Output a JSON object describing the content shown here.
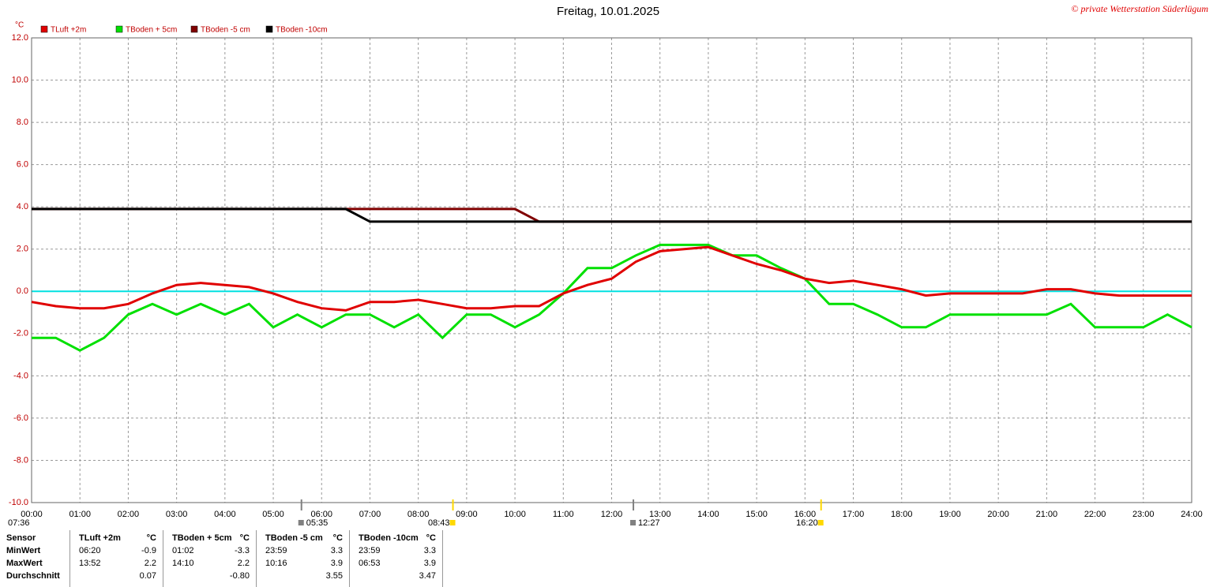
{
  "chart_data": {
    "type": "line",
    "title": "Freitag, 10.01.2025",
    "copyright": "© private Wetterstation Süderlügum",
    "y_unit": "°C",
    "x": [
      0,
      0.5,
      1,
      1.5,
      2,
      2.5,
      3,
      3.5,
      4,
      4.5,
      5,
      5.5,
      6,
      6.5,
      7,
      7.5,
      8,
      8.5,
      9,
      9.5,
      10,
      10.5,
      11,
      11.5,
      12,
      12.5,
      13,
      13.5,
      14,
      14.5,
      15,
      15.5,
      16,
      16.5,
      17,
      17.5,
      18,
      18.5,
      19,
      19.5,
      20,
      20.5,
      21,
      21.5,
      22,
      22.5,
      23,
      23.5,
      24
    ],
    "xlim": [
      0,
      24
    ],
    "xticks": [
      {
        "value": 0,
        "label": "00:00"
      },
      {
        "value": 1,
        "label": "01:00"
      },
      {
        "value": 2,
        "label": "02:00"
      },
      {
        "value": 3,
        "label": "03:00"
      },
      {
        "value": 4,
        "label": "04:00"
      },
      {
        "value": 5,
        "label": "05:00"
      },
      {
        "value": 6,
        "label": "06:00"
      },
      {
        "value": 7,
        "label": "07:00"
      },
      {
        "value": 8,
        "label": "08:00"
      },
      {
        "value": 9,
        "label": "09:00"
      },
      {
        "value": 10,
        "label": "10:00"
      },
      {
        "value": 11,
        "label": "11:00"
      },
      {
        "value": 12,
        "label": "12:00"
      },
      {
        "value": 13,
        "label": "13:00"
      },
      {
        "value": 14,
        "label": "14:00"
      },
      {
        "value": 15,
        "label": "15:00"
      },
      {
        "value": 16,
        "label": "16:00"
      },
      {
        "value": 17,
        "label": "17:00"
      },
      {
        "value": 18,
        "label": "18:00"
      },
      {
        "value": 19,
        "label": "19:00"
      },
      {
        "value": 20,
        "label": "20:00"
      },
      {
        "value": 21,
        "label": "21:00"
      },
      {
        "value": 22,
        "label": "22:00"
      },
      {
        "value": 23,
        "label": "23:00"
      },
      {
        "value": 24,
        "label": "24:00"
      }
    ],
    "ylim": [
      -10,
      12
    ],
    "yticks": [
      {
        "value": -10,
        "label": "-10.0"
      },
      {
        "value": -8,
        "label": "-8.0"
      },
      {
        "value": -6,
        "label": "-6.0"
      },
      {
        "value": -4,
        "label": "-4.0"
      },
      {
        "value": -2,
        "label": "-2.0"
      },
      {
        "value": 0,
        "label": "0.0"
      },
      {
        "value": 2,
        "label": "2.0"
      },
      {
        "value": 4,
        "label": "4.0"
      },
      {
        "value": 6,
        "label": "6.0"
      },
      {
        "value": 8,
        "label": "8.0"
      },
      {
        "value": 10,
        "label": "10.0"
      },
      {
        "value": 12,
        "label": "12.0"
      }
    ],
    "grid": true,
    "hline": 0,
    "hline_color": "#00e0e0",
    "series": [
      {
        "name": "TLuft +2m",
        "color": "#e00000",
        "values": [
          -0.5,
          -0.7,
          -0.8,
          -0.8,
          -0.6,
          -0.1,
          0.3,
          0.4,
          0.3,
          0.2,
          -0.1,
          -0.5,
          -0.8,
          -0.9,
          -0.5,
          -0.5,
          -0.4,
          -0.6,
          -0.8,
          -0.8,
          -0.7,
          -0.7,
          -0.1,
          0.3,
          0.6,
          1.4,
          1.9,
          2.0,
          2.1,
          1.7,
          1.3,
          1.0,
          0.6,
          0.4,
          0.5,
          0.3,
          0.1,
          -0.2,
          -0.1,
          -0.1,
          -0.1,
          -0.1,
          0.1,
          0.1,
          -0.1,
          -0.2,
          -0.2,
          -0.2,
          -0.2
        ]
      },
      {
        "name": "TBoden + 5cm",
        "color": "#00e000",
        "values": [
          -2.2,
          -2.2,
          -2.8,
          -2.2,
          -1.1,
          -0.6,
          -1.1,
          -0.6,
          -1.1,
          -0.6,
          -1.7,
          -1.1,
          -1.7,
          -1.1,
          -1.1,
          -1.7,
          -1.1,
          -2.2,
          -1.1,
          -1.1,
          -1.7,
          -1.1,
          -0.1,
          1.1,
          1.1,
          1.7,
          2.2,
          2.2,
          2.2,
          1.7,
          1.7,
          1.1,
          0.6,
          -0.6,
          -0.6,
          -1.1,
          -1.7,
          -1.7,
          -1.1,
          -1.1,
          -1.1,
          -1.1,
          -1.1,
          -0.6,
          -1.7,
          -1.7,
          -1.7,
          -1.1,
          -1.7
        ]
      },
      {
        "name": "TBoden -5 cm",
        "color": "#800000",
        "values": [
          3.9,
          3.9,
          3.9,
          3.9,
          3.9,
          3.9,
          3.9,
          3.9,
          3.9,
          3.9,
          3.9,
          3.9,
          3.9,
          3.9,
          3.9,
          3.9,
          3.9,
          3.9,
          3.9,
          3.9,
          3.9,
          3.3,
          3.3,
          3.3,
          3.3,
          3.3,
          3.3,
          3.3,
          3.3,
          3.3,
          3.3,
          3.3,
          3.3,
          3.3,
          3.3,
          3.3,
          3.3,
          3.3,
          3.3,
          3.3,
          3.3,
          3.3,
          3.3,
          3.3,
          3.3,
          3.3,
          3.3,
          3.3,
          3.3
        ]
      },
      {
        "name": "TBoden -10cm",
        "color": "#000000",
        "values": [
          3.9,
          3.9,
          3.9,
          3.9,
          3.9,
          3.9,
          3.9,
          3.9,
          3.9,
          3.9,
          3.9,
          3.9,
          3.9,
          3.9,
          3.3,
          3.3,
          3.3,
          3.3,
          3.3,
          3.3,
          3.3,
          3.3,
          3.3,
          3.3,
          3.3,
          3.3,
          3.3,
          3.3,
          3.3,
          3.3,
          3.3,
          3.3,
          3.3,
          3.3,
          3.3,
          3.3,
          3.3,
          3.3,
          3.3,
          3.3,
          3.3,
          3.3,
          3.3,
          3.3,
          3.3,
          3.3,
          3.3,
          3.3,
          3.3
        ]
      }
    ],
    "left_note": "07:36",
    "markers": [
      {
        "x": 5.583,
        "label": "05:35",
        "color": "#808080"
      },
      {
        "x": 8.717,
        "label": "08:43",
        "color": "#ffd800"
      },
      {
        "x": 12.45,
        "label": "12:27",
        "color": "#808080"
      },
      {
        "x": 16.333,
        "label": "16:20",
        "color": "#ffd800"
      }
    ]
  },
  "table": {
    "header": [
      "Sensor",
      "TLuft +2m",
      "°C",
      "TBoden + 5cm",
      "°C",
      "TBoden -5 cm",
      "°C",
      "TBoden -10cm",
      "°C"
    ],
    "rows": [
      [
        "MinWert",
        "06:20",
        "-0.9",
        "01:02",
        "-3.3",
        "23:59",
        "3.3",
        "23:59",
        "3.3"
      ],
      [
        "MaxWert",
        "13:52",
        "2.2",
        "14:10",
        "2.2",
        "10:16",
        "3.9",
        "06:53",
        "3.9"
      ],
      [
        "Durchschnitt",
        "",
        "0.07",
        "",
        "-0.80",
        "",
        "3.55",
        "",
        "3.47"
      ]
    ]
  }
}
